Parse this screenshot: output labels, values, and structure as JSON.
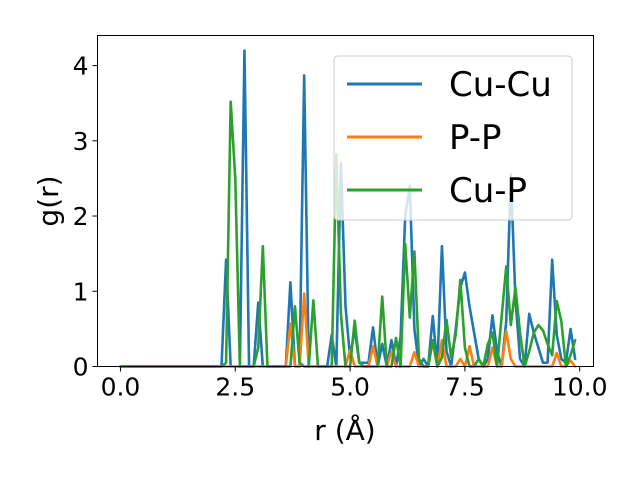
{
  "chart_data": {
    "type": "line",
    "xlabel": "r (Å)",
    "ylabel": "g(r)",
    "xlim": [
      -0.5,
      10.3
    ],
    "ylim": [
      0,
      4.4
    ],
    "xticks": [
      0.0,
      2.5,
      5.0,
      7.5,
      10.0
    ],
    "xtick_labels": [
      "0.0",
      "2.5",
      "5.0",
      "7.5",
      "10.0"
    ],
    "yticks": [
      0,
      1,
      2,
      3,
      4
    ],
    "ytick_labels": [
      "0",
      "1",
      "2",
      "3",
      "4"
    ],
    "legend_position": "top-right",
    "grid": false,
    "series": [
      {
        "name": "Cu-Cu",
        "color": "#1f77b4",
        "points": [
          [
            0.0,
            0.0
          ],
          [
            2.2,
            0.0
          ],
          [
            2.3,
            1.42
          ],
          [
            2.4,
            0.0
          ],
          [
            2.6,
            0.0
          ],
          [
            2.7,
            4.2
          ],
          [
            2.8,
            0.0
          ],
          [
            2.9,
            0.0
          ],
          [
            3.0,
            0.85
          ],
          [
            3.1,
            0.0
          ],
          [
            3.6,
            0.0
          ],
          [
            3.7,
            1.12
          ],
          [
            3.8,
            0.0
          ],
          [
            3.9,
            0.0
          ],
          [
            4.0,
            3.87
          ],
          [
            4.1,
            0.0
          ],
          [
            4.5,
            0.0
          ],
          [
            4.6,
            0.42
          ],
          [
            4.7,
            0.0
          ],
          [
            4.8,
            2.7
          ],
          [
            4.9,
            0.8
          ],
          [
            5.0,
            0.12
          ],
          [
            5.1,
            0.5
          ],
          [
            5.2,
            0.05
          ],
          [
            5.4,
            0.05
          ],
          [
            5.5,
            0.52
          ],
          [
            5.6,
            0.0
          ],
          [
            5.7,
            0.3
          ],
          [
            5.8,
            0.0
          ],
          [
            5.9,
            0.35
          ],
          [
            6.0,
            0.0
          ],
          [
            6.1,
            0.4
          ],
          [
            6.2,
            2.0
          ],
          [
            6.3,
            2.4
          ],
          [
            6.4,
            0.5
          ],
          [
            6.5,
            0.0
          ],
          [
            6.6,
            0.1
          ],
          [
            6.7,
            0.0
          ],
          [
            6.8,
            0.67
          ],
          [
            6.9,
            0.0
          ],
          [
            7.0,
            1.6
          ],
          [
            7.1,
            0.2
          ],
          [
            7.2,
            0.0
          ],
          [
            7.3,
            0.5
          ],
          [
            7.4,
            1.05
          ],
          [
            7.5,
            1.25
          ],
          [
            7.6,
            0.8
          ],
          [
            7.7,
            0.45
          ],
          [
            7.8,
            0.1
          ],
          [
            7.9,
            0.0
          ],
          [
            8.0,
            0.1
          ],
          [
            8.1,
            0.68
          ],
          [
            8.2,
            0.2
          ],
          [
            8.3,
            0.0
          ],
          [
            8.4,
            0.6
          ],
          [
            8.5,
            2.55
          ],
          [
            8.6,
            0.9
          ],
          [
            8.7,
            0.1
          ],
          [
            8.8,
            0.0
          ],
          [
            8.9,
            0.7
          ],
          [
            9.0,
            0.45
          ],
          [
            9.1,
            0.25
          ],
          [
            9.2,
            0.05
          ],
          [
            9.3,
            0.05
          ],
          [
            9.4,
            1.42
          ],
          [
            9.5,
            0.42
          ],
          [
            9.6,
            0.1
          ],
          [
            9.7,
            0.05
          ],
          [
            9.8,
            0.5
          ],
          [
            9.9,
            0.1
          ]
        ]
      },
      {
        "name": "P-P",
        "color": "#ff7f0e",
        "points": [
          [
            0.0,
            0.0
          ],
          [
            3.6,
            0.0
          ],
          [
            3.7,
            0.57
          ],
          [
            3.8,
            0.0
          ],
          [
            3.9,
            0.0
          ],
          [
            4.0,
            0.97
          ],
          [
            4.1,
            0.0
          ],
          [
            4.9,
            0.0
          ],
          [
            5.0,
            0.22
          ],
          [
            5.1,
            0.0
          ],
          [
            5.4,
            0.0
          ],
          [
            5.5,
            0.27
          ],
          [
            5.6,
            0.0
          ],
          [
            5.8,
            0.0
          ],
          [
            5.9,
            0.2
          ],
          [
            6.0,
            0.0
          ],
          [
            6.3,
            0.0
          ],
          [
            6.4,
            0.19
          ],
          [
            6.5,
            0.0
          ],
          [
            6.7,
            0.0
          ],
          [
            6.8,
            0.33
          ],
          [
            6.9,
            0.0
          ],
          [
            7.0,
            0.35
          ],
          [
            7.1,
            0.0
          ],
          [
            7.3,
            0.0
          ],
          [
            7.4,
            0.1
          ],
          [
            7.5,
            0.0
          ],
          [
            7.6,
            0.27
          ],
          [
            7.7,
            0.0
          ],
          [
            8.0,
            0.0
          ],
          [
            8.1,
            0.25
          ],
          [
            8.2,
            0.0
          ],
          [
            8.3,
            0.0
          ],
          [
            8.4,
            0.47
          ],
          [
            8.5,
            0.1
          ],
          [
            8.6,
            0.0
          ],
          [
            9.4,
            0.0
          ],
          [
            9.5,
            0.18
          ],
          [
            9.6,
            0.0
          ],
          [
            9.7,
            0.0
          ],
          [
            9.8,
            0.08
          ],
          [
            9.9,
            0.0
          ]
        ]
      },
      {
        "name": "Cu-P",
        "color": "#2ca02c",
        "points": [
          [
            0.0,
            0.0
          ],
          [
            2.2,
            0.0
          ],
          [
            2.3,
            0.05
          ],
          [
            2.4,
            3.52
          ],
          [
            2.5,
            2.5
          ],
          [
            2.6,
            0.0
          ],
          [
            2.9,
            0.0
          ],
          [
            3.0,
            0.25
          ],
          [
            3.1,
            1.6
          ],
          [
            3.2,
            0.0
          ],
          [
            3.7,
            0.0
          ],
          [
            3.8,
            0.8
          ],
          [
            3.9,
            0.05
          ],
          [
            4.0,
            0.0
          ],
          [
            4.1,
            0.0
          ],
          [
            4.2,
            0.88
          ],
          [
            4.3,
            0.0
          ],
          [
            4.6,
            0.0
          ],
          [
            4.7,
            2.82
          ],
          [
            4.8,
            0.7
          ],
          [
            4.9,
            0.0
          ],
          [
            5.0,
            0.0
          ],
          [
            5.1,
            0.61
          ],
          [
            5.2,
            0.05
          ],
          [
            5.3,
            0.0
          ],
          [
            5.6,
            0.0
          ],
          [
            5.7,
            0.93
          ],
          [
            5.8,
            0.0
          ],
          [
            5.9,
            0.0
          ],
          [
            6.0,
            0.38
          ],
          [
            6.1,
            0.0
          ],
          [
            6.2,
            1.63
          ],
          [
            6.3,
            0.65
          ],
          [
            6.4,
            1.53
          ],
          [
            6.5,
            0.1
          ],
          [
            6.6,
            0.0
          ],
          [
            6.7,
            0.0
          ],
          [
            6.8,
            0.35
          ],
          [
            6.9,
            0.0
          ],
          [
            7.0,
            0.12
          ],
          [
            7.1,
            0.62
          ],
          [
            7.2,
            0.12
          ],
          [
            7.3,
            0.42
          ],
          [
            7.4,
            1.15
          ],
          [
            7.5,
            0.25
          ],
          [
            7.6,
            0.0
          ],
          [
            7.7,
            0.0
          ],
          [
            7.8,
            0.1
          ],
          [
            7.9,
            0.0
          ],
          [
            8.0,
            0.3
          ],
          [
            8.1,
            0.45
          ],
          [
            8.2,
            0.0
          ],
          [
            8.4,
            1.33
          ],
          [
            8.5,
            0.55
          ],
          [
            8.6,
            1.05
          ],
          [
            8.7,
            0.45
          ],
          [
            8.8,
            0.0
          ],
          [
            8.9,
            0.2
          ],
          [
            9.0,
            0.45
          ],
          [
            9.1,
            0.55
          ],
          [
            9.2,
            0.48
          ],
          [
            9.3,
            0.3
          ],
          [
            9.4,
            0.15
          ],
          [
            9.5,
            0.87
          ],
          [
            9.6,
            0.6
          ],
          [
            9.7,
            0.0
          ],
          [
            9.8,
            0.15
          ],
          [
            9.9,
            0.35
          ]
        ]
      }
    ]
  }
}
